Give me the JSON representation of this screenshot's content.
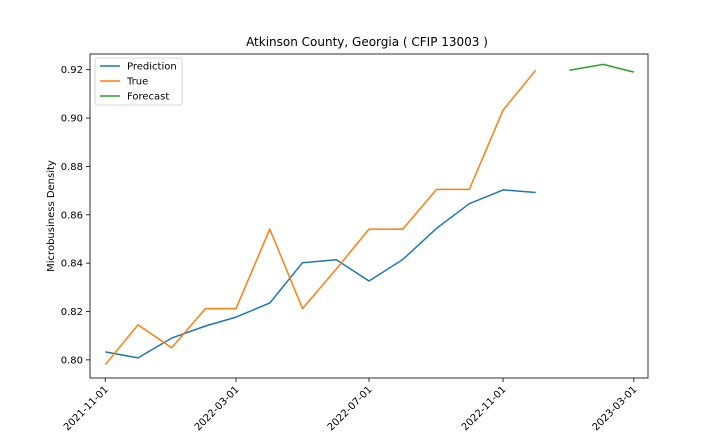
{
  "chart_data": {
    "type": "line",
    "title": "Atkinson County, Georgia ( CFIP 13003 )",
    "xlabel": "",
    "ylabel": "Microbusiness Density",
    "xlim": [
      "2021-10-18",
      "2023-03-14"
    ],
    "ylim": [
      0.7925,
      0.9265
    ],
    "x_ticks": [
      "2021-11-01",
      "2022-03-01",
      "2022-07-01",
      "2022-11-01",
      "2023-03-01"
    ],
    "y_ticks": [
      0.8,
      0.82,
      0.84,
      0.86,
      0.88,
      0.9,
      0.92
    ],
    "y_tick_labels": [
      "0.80",
      "0.82",
      "0.84",
      "0.86",
      "0.88",
      "0.90",
      "0.92"
    ],
    "grid": false,
    "legend_position": "top-left",
    "series": [
      {
        "name": "Prediction",
        "color": "#1f77b4",
        "x": [
          "2021-11-01",
          "2021-12-01",
          "2022-01-01",
          "2022-02-01",
          "2022-03-01",
          "2022-04-01",
          "2022-05-01",
          "2022-06-01",
          "2022-07-01",
          "2022-08-01",
          "2022-09-01",
          "2022-10-01",
          "2022-11-01",
          "2022-12-01"
        ],
        "y": [
          0.8033,
          0.8008,
          0.809,
          0.814,
          0.8177,
          0.8235,
          0.8402,
          0.8414,
          0.8326,
          0.8415,
          0.8544,
          0.8646,
          0.8703,
          0.8692
        ]
      },
      {
        "name": "True",
        "color": "#ff7f0e",
        "x": [
          "2021-11-01",
          "2021-12-01",
          "2022-01-01",
          "2022-02-01",
          "2022-03-01",
          "2022-04-01",
          "2022-05-01",
          "2022-06-01",
          "2022-07-01",
          "2022-08-01",
          "2022-09-01",
          "2022-10-01",
          "2022-11-01",
          "2022-12-01"
        ],
        "y": [
          0.798,
          0.8145,
          0.805,
          0.8212,
          0.8212,
          0.8541,
          0.8212,
          0.8376,
          0.8541,
          0.8541,
          0.8705,
          0.8705,
          0.9033,
          0.9198
        ]
      },
      {
        "name": "Forecast",
        "color": "#2ca02c",
        "x": [
          "2023-01-01",
          "2023-02-01",
          "2023-03-01"
        ],
        "y": [
          0.9198,
          0.9222,
          0.919
        ]
      }
    ]
  }
}
